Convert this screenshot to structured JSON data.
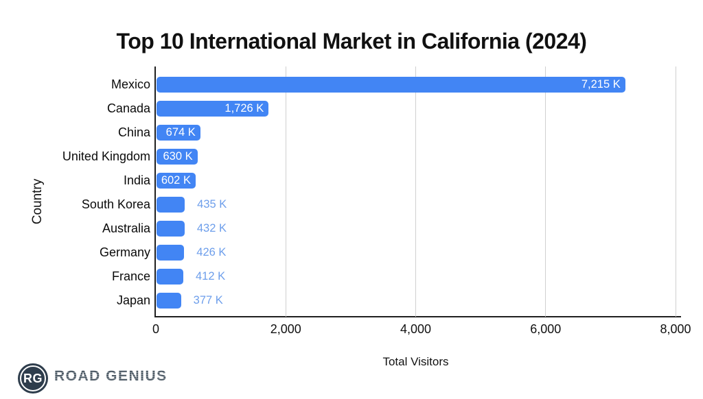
{
  "title": "Top 10 International Market in California (2024)",
  "chart_data": {
    "type": "bar",
    "orientation": "horizontal",
    "title": "Top 10 International Market in California (2024)",
    "xlabel": "Total Visitors",
    "ylabel": "Country",
    "units": "thousands (K)",
    "xlim": [
      0,
      8000
    ],
    "x_ticks": [
      {
        "value": 0,
        "label": "0"
      },
      {
        "value": 2000,
        "label": "2,000"
      },
      {
        "value": 4000,
        "label": "4,000"
      },
      {
        "value": 6000,
        "label": "6,000"
      },
      {
        "value": 8000,
        "label": "8,000"
      }
    ],
    "grid": true,
    "legend": "none",
    "categories": [
      "Mexico",
      "Canada",
      "China",
      "United Kingdom",
      "India",
      "South Korea",
      "Australia",
      "Germany",
      "France",
      "Japan"
    ],
    "values": [
      7215,
      1726,
      674,
      630,
      602,
      435,
      432,
      426,
      412,
      377
    ],
    "value_labels": [
      "7,215 K",
      "1,726 K",
      "674 K",
      "630 K",
      "602 K",
      "435 K",
      "432 K",
      "426 K",
      "412 K",
      "377 K"
    ],
    "colors": {
      "bar": "#4285f4",
      "inside_label": "#ffffff",
      "outside_label": "#6d9eeb",
      "gridline": "#cfcfcf",
      "axis": "#1f1f1f"
    }
  },
  "branding": {
    "logo_monogram": "RG",
    "logo_text": "ROAD GENIUS"
  }
}
